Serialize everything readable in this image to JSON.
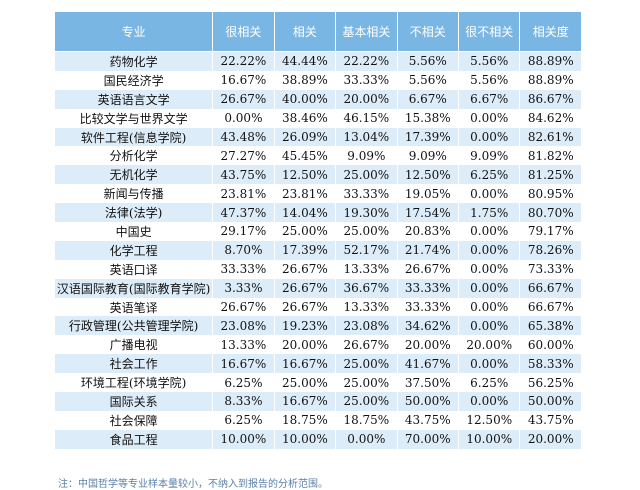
{
  "table": {
    "headers": [
      "专业",
      "很相关",
      "相关",
      "基本相关",
      "不相关",
      "很不相关",
      "相关度"
    ],
    "rows": [
      [
        "药物化学",
        "22.22%",
        "44.44%",
        "22.22%",
        "5.56%",
        "5.56%",
        "88.89%"
      ],
      [
        "国民经济学",
        "16.67%",
        "38.89%",
        "33.33%",
        "5.56%",
        "5.56%",
        "88.89%"
      ],
      [
        "英语语言文学",
        "26.67%",
        "40.00%",
        "20.00%",
        "6.67%",
        "6.67%",
        "86.67%"
      ],
      [
        "比较文学与世界文学",
        "0.00%",
        "38.46%",
        "46.15%",
        "15.38%",
        "0.00%",
        "84.62%"
      ],
      [
        "软件工程(信息学院)",
        "43.48%",
        "26.09%",
        "13.04%",
        "17.39%",
        "0.00%",
        "82.61%"
      ],
      [
        "分析化学",
        "27.27%",
        "45.45%",
        "9.09%",
        "9.09%",
        "9.09%",
        "81.82%"
      ],
      [
        "无机化学",
        "43.75%",
        "12.50%",
        "25.00%",
        "12.50%",
        "6.25%",
        "81.25%"
      ],
      [
        "新闻与传播",
        "23.81%",
        "23.81%",
        "33.33%",
        "19.05%",
        "0.00%",
        "80.95%"
      ],
      [
        "法律(法学)",
        "47.37%",
        "14.04%",
        "19.30%",
        "17.54%",
        "1.75%",
        "80.70%"
      ],
      [
        "中国史",
        "29.17%",
        "25.00%",
        "25.00%",
        "20.83%",
        "0.00%",
        "79.17%"
      ],
      [
        "化学工程",
        "8.70%",
        "17.39%",
        "52.17%",
        "21.74%",
        "0.00%",
        "78.26%"
      ],
      [
        "英语口译",
        "33.33%",
        "26.67%",
        "13.33%",
        "26.67%",
        "0.00%",
        "73.33%"
      ],
      [
        "汉语国际教育(国际教育学院)",
        "3.33%",
        "26.67%",
        "36.67%",
        "33.33%",
        "0.00%",
        "66.67%"
      ],
      [
        "英语笔译",
        "26.67%",
        "26.67%",
        "13.33%",
        "33.33%",
        "0.00%",
        "66.67%"
      ],
      [
        "行政管理(公共管理学院)",
        "23.08%",
        "19.23%",
        "23.08%",
        "34.62%",
        "0.00%",
        "65.38%"
      ],
      [
        "广播电视",
        "13.33%",
        "20.00%",
        "26.67%",
        "20.00%",
        "20.00%",
        "60.00%"
      ],
      [
        "社会工作",
        "16.67%",
        "16.67%",
        "25.00%",
        "41.67%",
        "0.00%",
        "58.33%"
      ],
      [
        "环境工程(环境学院)",
        "6.25%",
        "25.00%",
        "25.00%",
        "37.50%",
        "6.25%",
        "56.25%"
      ],
      [
        "国际关系",
        "8.33%",
        "16.67%",
        "25.00%",
        "50.00%",
        "0.00%",
        "50.00%"
      ],
      [
        "社会保障",
        "6.25%",
        "18.75%",
        "18.75%",
        "43.75%",
        "12.50%",
        "43.75%"
      ],
      [
        "食品工程",
        "10.00%",
        "10.00%",
        "0.00%",
        "70.00%",
        "10.00%",
        "20.00%"
      ]
    ]
  },
  "note": "注：中国哲学等专业样本量较小，不纳入到报告的分析范围。",
  "colors": {
    "header_bg": "#7ab6e3",
    "stripe": "#dcecf8",
    "note": "#5a7fa8"
  }
}
